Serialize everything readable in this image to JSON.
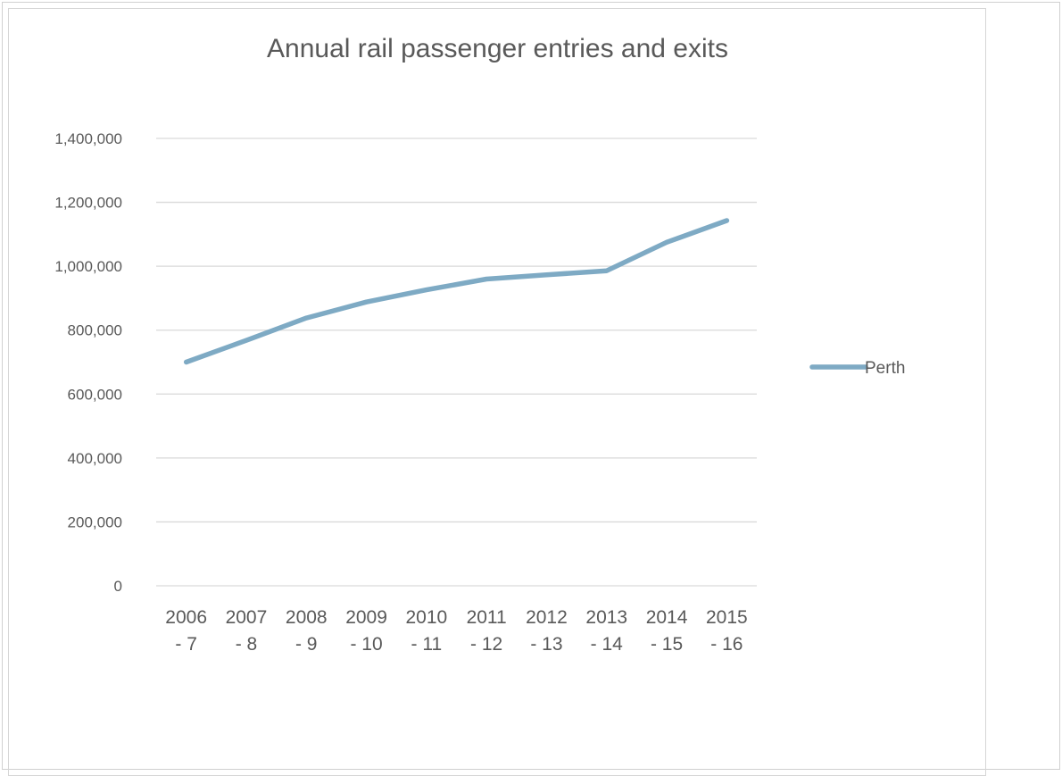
{
  "chart_data": {
    "type": "line",
    "title": "Annual rail passenger entries and exits",
    "xlabel": "",
    "ylabel": "",
    "categories": [
      [
        "2006",
        "- 7"
      ],
      [
        "2007",
        "- 8"
      ],
      [
        "2008",
        "- 9"
      ],
      [
        "2009",
        "- 10"
      ],
      [
        "2010",
        "- 11"
      ],
      [
        "2011",
        "- 12"
      ],
      [
        "2012",
        "- 13"
      ],
      [
        "2013",
        "- 14"
      ],
      [
        "2014",
        "- 15"
      ],
      [
        "2015",
        "- 16"
      ]
    ],
    "series": [
      {
        "name": "Perth",
        "color": "#7eaac4",
        "values": [
          700000,
          768000,
          838000,
          888000,
          926000,
          960000,
          973000,
          986000,
          1075000,
          1143000
        ]
      }
    ],
    "ylim": [
      0,
      1400000
    ],
    "yticks": [
      0,
      200000,
      400000,
      600000,
      800000,
      1000000,
      1200000,
      1400000
    ],
    "ytick_labels": [
      "0",
      "200,000",
      "400,000",
      "600,000",
      "800,000",
      "1,000,000",
      "1,200,000",
      "1,400,000"
    ],
    "grid": true,
    "gridline_color": "#d9d9d9",
    "legend_position": "right"
  }
}
